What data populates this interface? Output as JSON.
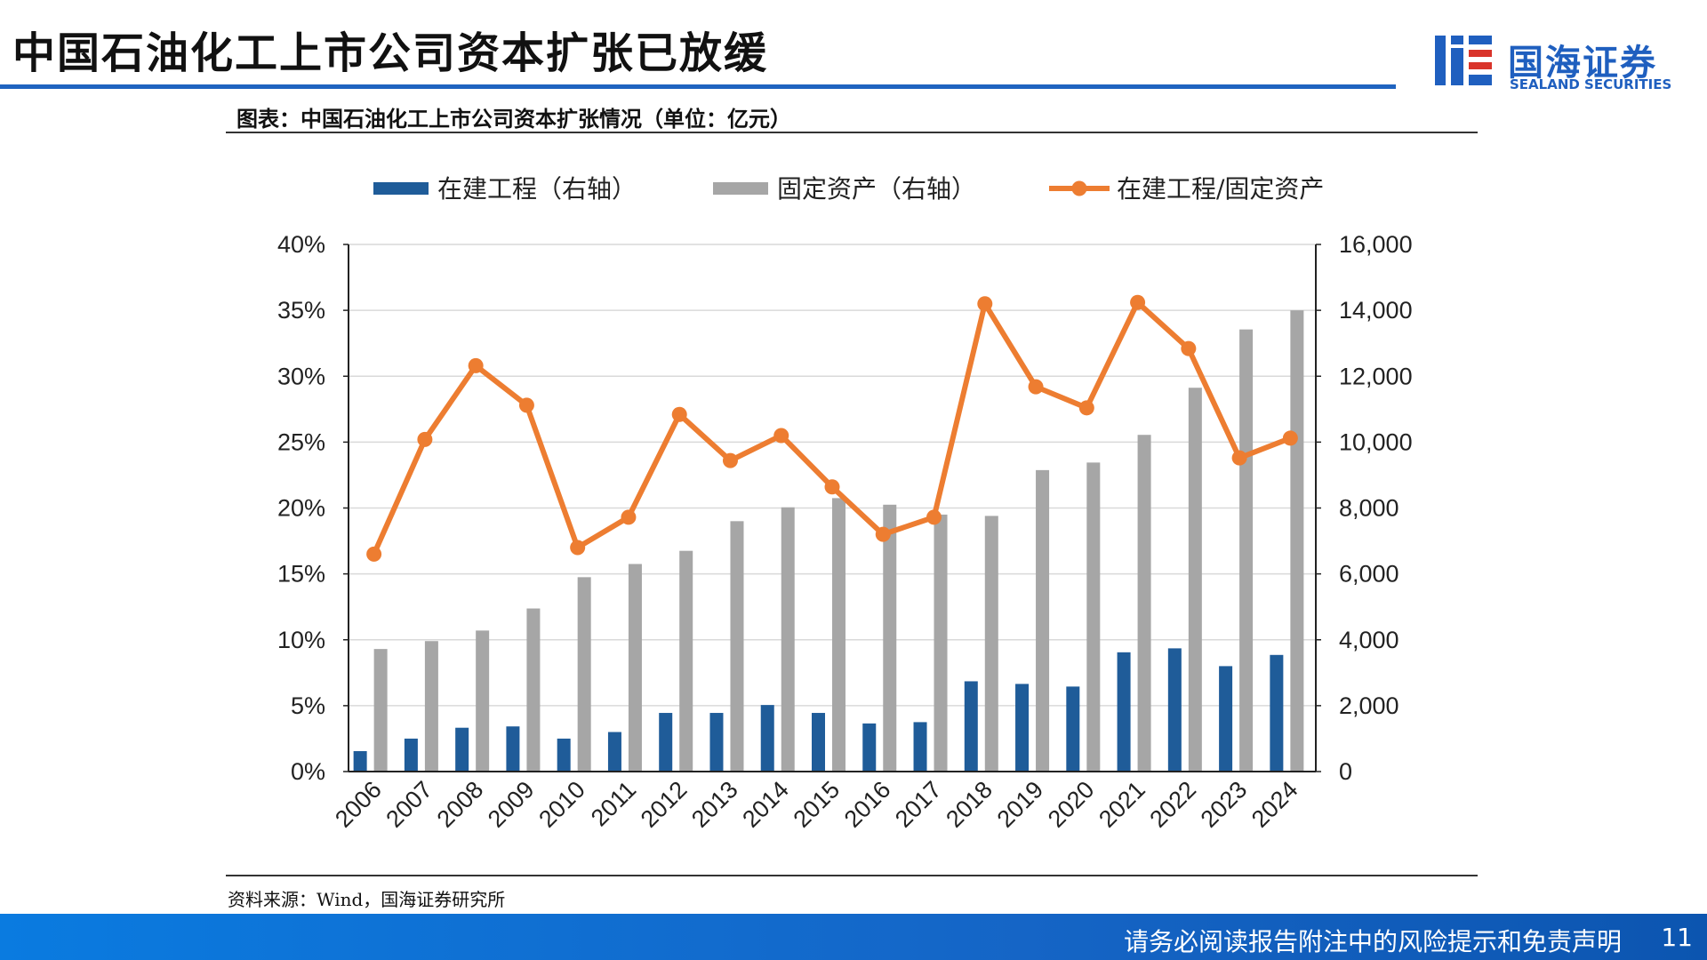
{
  "header": {
    "title": "中国石油化工上市公司资本扩张已放缓",
    "logo_cn": "国海证券",
    "logo_en": "SEALAND SECURITIES"
  },
  "subtitle": "图表：中国石油化工上市公司资本扩张情况（单位：亿元）",
  "source": "资料来源：Wind，国海证券研究所",
  "footer": {
    "disclaimer": "请务必阅读报告附注中的风险提示和免责声明",
    "page": "11"
  },
  "colors": {
    "construction": "#1f5c99",
    "fixed_assets": "#a6a6a6",
    "ratio": "#ed7d31",
    "brand": "#1f64c0"
  },
  "chart_data": {
    "type": "bar",
    "categories": [
      "2006",
      "2007",
      "2008",
      "2009",
      "2010",
      "2011",
      "2012",
      "2013",
      "2014",
      "2015",
      "2016",
      "2017",
      "2018",
      "2019",
      "2020",
      "2021",
      "2022",
      "2023",
      "2024"
    ],
    "series": [
      {
        "name": "在建工程（右轴）",
        "type": "bar",
        "axis": "right",
        "values": [
          620,
          1000,
          1330,
          1370,
          1000,
          1200,
          1780,
          1780,
          2020,
          1780,
          1460,
          1500,
          2740,
          2660,
          2580,
          3620,
          3740,
          3200,
          3540
        ]
      },
      {
        "name": "固定资产（右轴）",
        "type": "bar",
        "axis": "right",
        "values": [
          3720,
          3960,
          4280,
          4950,
          5900,
          6300,
          6700,
          7600,
          8020,
          8300,
          8100,
          7800,
          7760,
          9150,
          9380,
          10220,
          11650,
          13420,
          14000
        ]
      },
      {
        "name": "在建工程/固定资产",
        "type": "line",
        "axis": "left",
        "unit": "%",
        "values": [
          16.5,
          25.2,
          30.8,
          27.8,
          17.0,
          19.3,
          27.1,
          23.6,
          25.5,
          21.6,
          18.0,
          19.3,
          35.5,
          29.2,
          27.6,
          35.6,
          32.1,
          23.8,
          25.3
        ]
      }
    ],
    "left_axis": {
      "ylim": [
        0,
        40
      ],
      "ticks": [
        "0%",
        "5%",
        "10%",
        "15%",
        "20%",
        "25%",
        "30%",
        "35%",
        "40%"
      ]
    },
    "right_axis": {
      "ylim": [
        0,
        16000
      ],
      "ticks": [
        "0",
        "2,000",
        "4,000",
        "6,000",
        "8,000",
        "10,000",
        "12,000",
        "14,000",
        "16,000"
      ]
    },
    "grid": true,
    "legend_position": "top"
  }
}
